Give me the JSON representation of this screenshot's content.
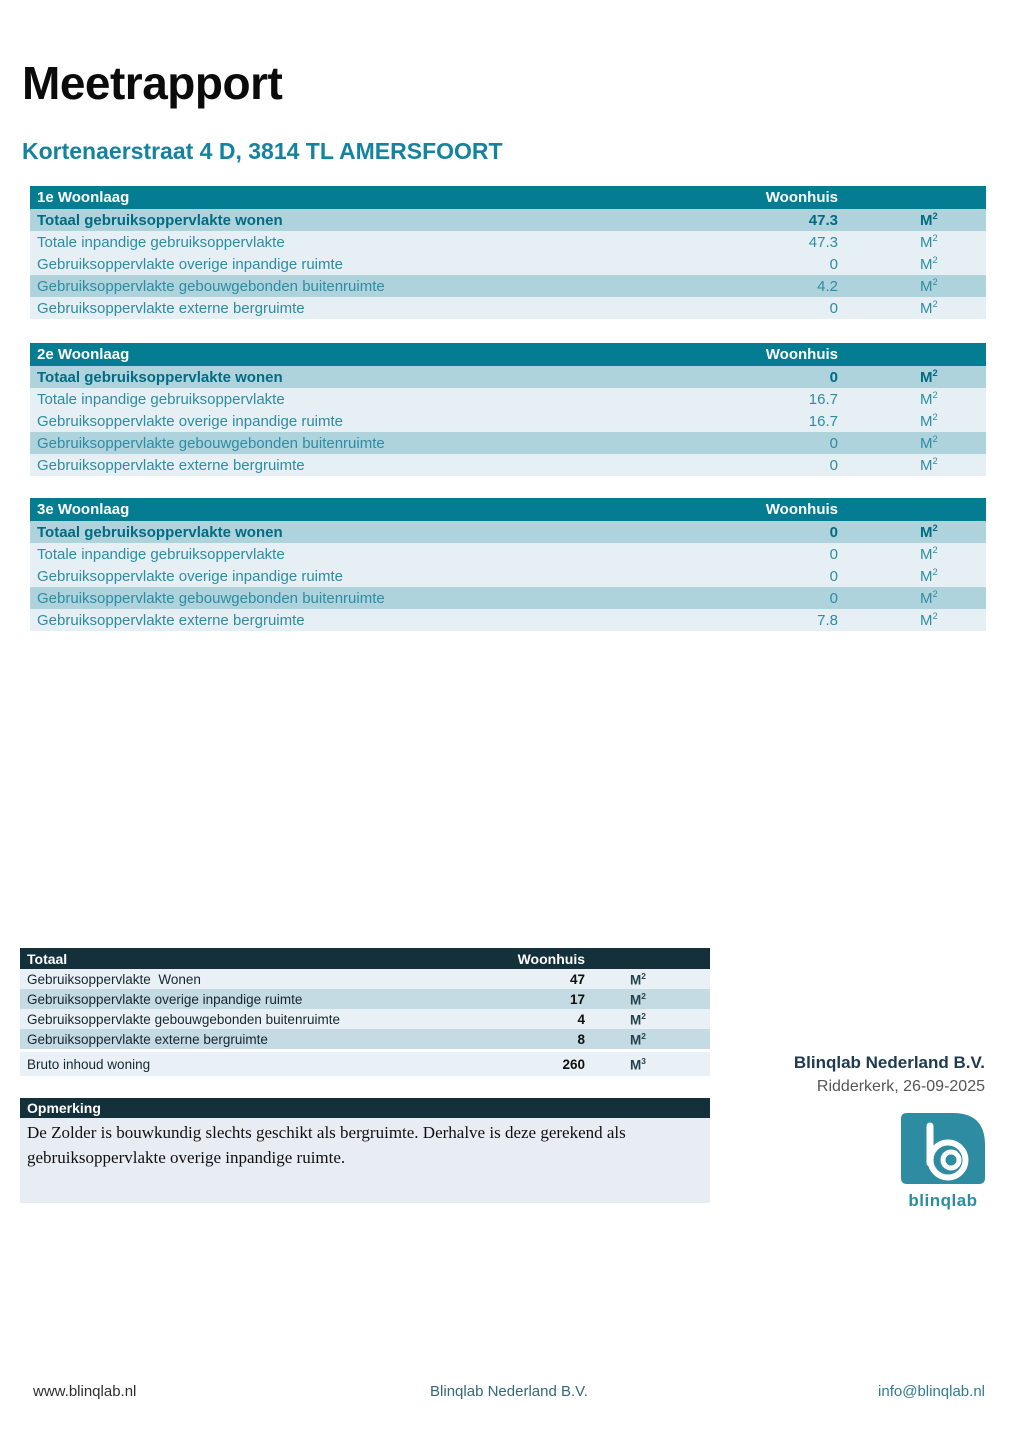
{
  "page": {
    "title": "Meetrapport",
    "subtitle": "Kortenaerstraat 4 D, 3814 TL AMERSFOORT"
  },
  "floor_tables": [
    {
      "title": "1e Woonlaag",
      "column_header": "Woonhuis",
      "rows": [
        {
          "label": "Totaal gebruiksoppervlakte wonen",
          "value": "47.3",
          "unit": "M2"
        },
        {
          "label": "Totale inpandige gebruiksoppervlakte",
          "value": "47.3",
          "unit": "M2"
        },
        {
          "label": "Gebruiksoppervlakte overige inpandige ruimte",
          "value": "0",
          "unit": "M2"
        },
        {
          "label": "Gebruiksoppervlakte gebouwgebonden buitenruimte",
          "value": "4.2",
          "unit": "M2"
        },
        {
          "label": "Gebruiksoppervlakte externe bergruimte",
          "value": "0",
          "unit": "M2"
        }
      ]
    },
    {
      "title": "2e Woonlaag",
      "column_header": "Woonhuis",
      "rows": [
        {
          "label": "Totaal gebruiksoppervlakte wonen",
          "value": "0",
          "unit": "M2"
        },
        {
          "label": "Totale inpandige gebruiksoppervlakte",
          "value": "16.7",
          "unit": "M2"
        },
        {
          "label": "Gebruiksoppervlakte overige inpandige ruimte",
          "value": "16.7",
          "unit": "M2"
        },
        {
          "label": "Gebruiksoppervlakte gebouwgebonden buitenruimte",
          "value": "0",
          "unit": "M2"
        },
        {
          "label": "Gebruiksoppervlakte externe bergruimte",
          "value": "0",
          "unit": "M2"
        }
      ]
    },
    {
      "title": "3e Woonlaag",
      "column_header": "Woonhuis",
      "rows": [
        {
          "label": "Totaal gebruiksoppervlakte wonen",
          "value": "0",
          "unit": "M2"
        },
        {
          "label": "Totale inpandige gebruiksoppervlakte",
          "value": "0",
          "unit": "M2"
        },
        {
          "label": "Gebruiksoppervlakte overige inpandige ruimte",
          "value": "0",
          "unit": "M2"
        },
        {
          "label": "Gebruiksoppervlakte gebouwgebonden buitenruimte",
          "value": "0",
          "unit": "M2"
        },
        {
          "label": "Gebruiksoppervlakte externe bergruimte",
          "value": "7.8",
          "unit": "M2"
        }
      ]
    }
  ],
  "total_table": {
    "title": "Totaal",
    "column_header": "Woonhuis",
    "rows": [
      {
        "label": "Gebruiksoppervlakte  Wonen",
        "value": "47",
        "unit": "M2"
      },
      {
        "label": "Gebruiksoppervlakte overige inpandige ruimte",
        "value": "17",
        "unit": "M2"
      },
      {
        "label": "Gebruiksoppervlakte gebouwgebonden buitenruimte",
        "value": "4",
        "unit": "M2"
      },
      {
        "label": "Gebruiksoppervlakte externe bergruimte",
        "value": "8",
        "unit": "M2"
      },
      {
        "label": "Bruto inhoud woning",
        "value": "260",
        "unit": "M3"
      }
    ]
  },
  "remark": {
    "title": "Opmerking",
    "body": "De Zolder is bouwkundig slechts geschikt als bergruimte. Derhalve is deze gerekend als gebruiksoppervlakte overige inpandige ruimte."
  },
  "company": {
    "name": "Blinqlab Nederland B.V.",
    "place_date": "Ridderkerk, 26-09-2025",
    "logo_text": "blinqlab"
  },
  "footer": {
    "left": "www.blinqlab.nl",
    "center": "Blinqlab Nederland B.V.",
    "right": "info@blinqlab.nl"
  },
  "colors": {
    "teal_header": "#047D93",
    "band_medium": "#AED3DD",
    "band_light": "#E5EFF4",
    "row_text": "#2E8CA2",
    "row_text_bold": "#006B82",
    "dark_header": "#14303B",
    "total_band_medium": "#C4DBE3",
    "total_band_light": "#E9F1F6",
    "remark_body_bg": "#E8EDF3",
    "accent_teal": "#1583A0",
    "logo_teal": "#2D8CA1"
  }
}
